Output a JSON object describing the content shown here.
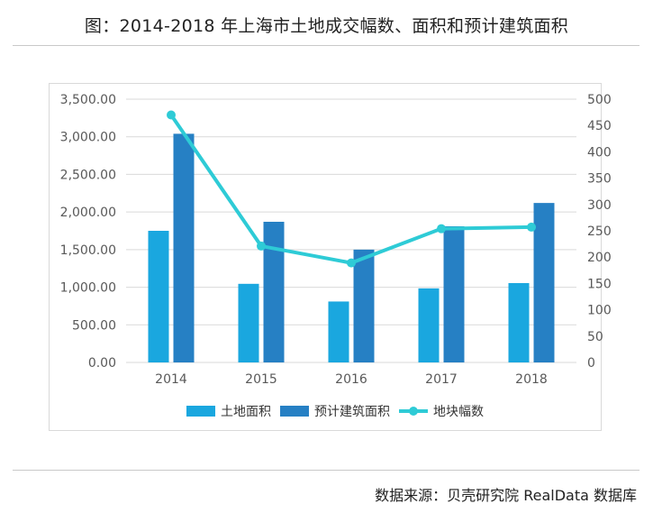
{
  "header": {
    "title": "图：2014-2018 年上海市土地成交幅数、面积和预计建筑面积"
  },
  "footer": {
    "source": "数据来源：贝壳研究院 RealData 数据库"
  },
  "colors": {
    "land_area": "#1aa7df",
    "building_area": "#2680c4",
    "parcels": "#2ecbd6",
    "grid": "#d9d9d9",
    "axis_text": "#595959"
  },
  "chart_data": {
    "type": "bar",
    "categories": [
      "2014",
      "2015",
      "2016",
      "2017",
      "2018"
    ],
    "series": [
      {
        "name": "土地面积",
        "type": "bar",
        "axis": "left",
        "values": [
          1750,
          1045,
          810,
          985,
          1055
        ]
      },
      {
        "name": "预计建筑面积",
        "type": "bar",
        "axis": "left",
        "values": [
          3040,
          1870,
          1500,
          1810,
          2120
        ]
      },
      {
        "name": "地块幅数",
        "type": "line",
        "axis": "right",
        "values": [
          470,
          221,
          189,
          254,
          257
        ]
      }
    ],
    "y_left": {
      "ylim": [
        0,
        3500
      ],
      "ticks": [
        "0.00",
        "500.00",
        "1,000.00",
        "1,500.00",
        "2,000.00",
        "2,500.00",
        "3,000.00",
        "3,500.00"
      ]
    },
    "y_right": {
      "ylim": [
        0,
        500
      ],
      "ticks": [
        "0",
        "50",
        "100",
        "150",
        "200",
        "250",
        "300",
        "350",
        "400",
        "450",
        "500"
      ]
    },
    "grid": true,
    "legend_position": "bottom"
  }
}
